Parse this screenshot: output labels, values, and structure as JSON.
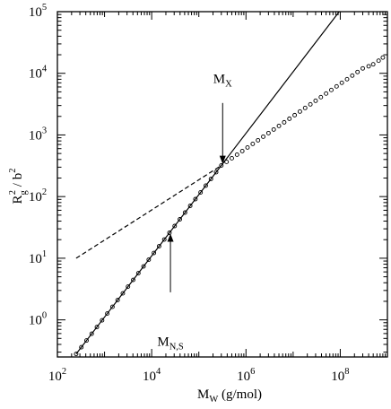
{
  "chart_data": {
    "type": "scatter",
    "xscale": "log",
    "yscale": "log",
    "xlim": [
      100,
      1000000000
    ],
    "ylim": [
      0.25,
      100000
    ],
    "grid": false,
    "legend": "none",
    "xlabel": {
      "main": "M",
      "sub": "W",
      "rest": " (g/mol)"
    },
    "ylabel": {
      "main": "R",
      "sub": "g",
      "sup": "2",
      "rest": " / b",
      "sup2": "2"
    },
    "x_ticks": [
      {
        "value": 100,
        "base": "10",
        "exp": "2"
      },
      {
        "value": 10000,
        "base": "10",
        "exp": "4"
      },
      {
        "value": 1000000,
        "base": "10",
        "exp": "6"
      },
      {
        "value": 100000000,
        "base": "10",
        "exp": "8"
      }
    ],
    "y_ticks": [
      {
        "value": 1,
        "base": "10",
        "exp": "0"
      },
      {
        "value": 10,
        "base": "10",
        "exp": "1"
      },
      {
        "value": 100,
        "base": "10",
        "exp": "2"
      },
      {
        "value": 1000,
        "base": "10",
        "exp": "3"
      },
      {
        "value": 10000,
        "base": "10",
        "exp": "4"
      },
      {
        "value": 100000,
        "base": "10",
        "exp": "5"
      }
    ],
    "series": [
      {
        "style": "open-circles",
        "color": "#000000",
        "segments": [
          {
            "x_start": 250,
            "y_start": 0.28,
            "x_end": 300000,
            "y_end": 320
          },
          {
            "x_start": 300000,
            "y_start": 320,
            "x_end": 300000000,
            "y_end": 12000
          }
        ],
        "points_per_decade": 9,
        "tail": [
          {
            "x": 400000000,
            "y": 13000
          },
          {
            "x": 500000000,
            "y": 14000
          },
          {
            "x": 650000000,
            "y": 16000
          },
          {
            "x": 800000000,
            "y": 18000
          }
        ]
      },
      {
        "style": "solid-line",
        "color": "#000000",
        "points": [
          {
            "x": 250,
            "y": 0.28
          },
          {
            "x": 300000,
            "y": 320
          },
          {
            "x": 95000000,
            "y": 100000
          }
        ]
      },
      {
        "style": "dashed-line",
        "color": "#000000",
        "points": [
          {
            "x": 250,
            "y": 10
          },
          {
            "x": 300000,
            "y": 320
          }
        ]
      }
    ],
    "annotations": [
      {
        "main": "M",
        "sub": "X",
        "label_at": {
          "x": 320000,
          "y": 7000
        },
        "arrow_from": {
          "x": 320000,
          "y": 3300
        },
        "arrow_to": {
          "x": 320000,
          "y": 340
        }
      },
      {
        "main": "M",
        "sub": "N,S",
        "label_at": {
          "x": 25000,
          "y": 0.38
        },
        "arrow_from": {
          "x": 25000,
          "y": 2.8
        },
        "arrow_to": {
          "x": 25000,
          "y": 25
        }
      }
    ]
  }
}
